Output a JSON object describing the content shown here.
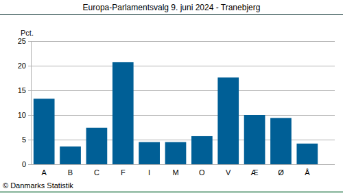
{
  "chart_data": {
    "type": "bar",
    "title": "Europa-Parlamentsvalg 9. juni 2024 - Tranebjerg",
    "y_label": "Pct.",
    "source": "© Danmarks Statistik",
    "categories": [
      "A",
      "B",
      "C",
      "F",
      "I",
      "M",
      "O",
      "V",
      "Æ",
      "Ø",
      "Å"
    ],
    "values": [
      13.3,
      3.6,
      7.4,
      20.7,
      4.5,
      4.5,
      5.7,
      17.6,
      10.0,
      9.4,
      4.2
    ],
    "color": "#005f96",
    "ylim": [
      0,
      25
    ],
    "yticks": [
      0,
      5,
      10,
      15,
      20,
      25
    ],
    "grid": true
  }
}
